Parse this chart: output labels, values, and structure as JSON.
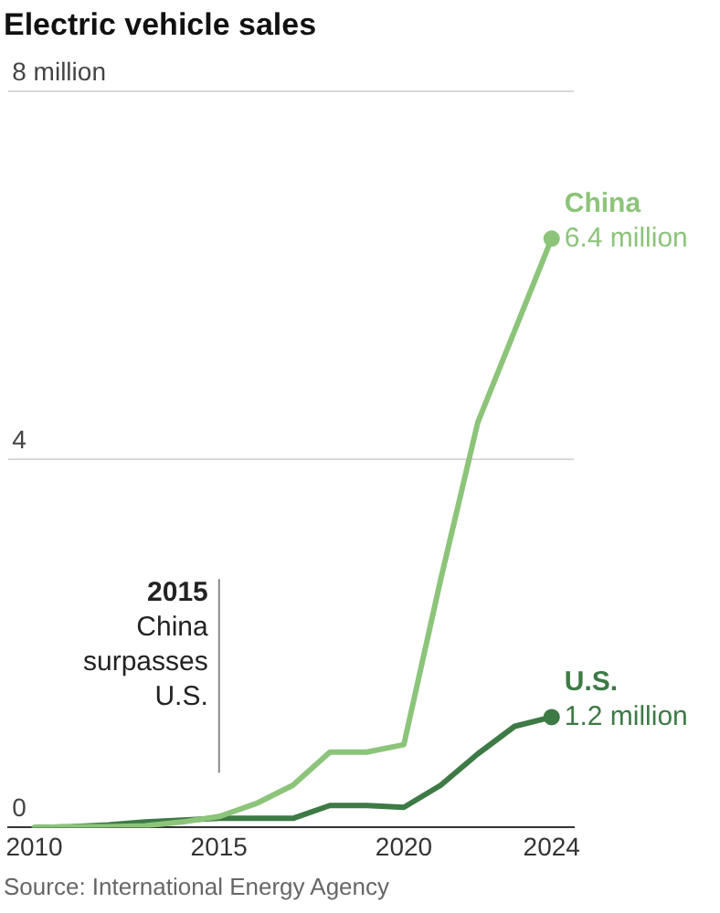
{
  "chart_data": {
    "type": "line",
    "title": "Electric vehicle sales",
    "x": [
      2010,
      2011,
      2012,
      2013,
      2014,
      2015,
      2016,
      2017,
      2018,
      2019,
      2020,
      2021,
      2022,
      2023,
      2024
    ],
    "series": [
      {
        "name": "China",
        "color": "#8cc47a",
        "values": [
          0,
          0.01,
          0.01,
          0.02,
          0.06,
          0.12,
          0.26,
          0.46,
          0.82,
          0.82,
          0.9,
          2.7,
          4.4,
          5.4,
          6.4
        ],
        "value_labels": [
          null,
          null,
          null,
          null,
          null,
          null,
          null,
          null,
          null,
          null,
          null,
          null,
          null,
          null,
          "6.4 million"
        ]
      },
      {
        "name": "U.S.",
        "color": "#3d7a45",
        "values": [
          0,
          0.01,
          0.03,
          0.06,
          0.08,
          0.1,
          0.1,
          0.1,
          0.24,
          0.24,
          0.22,
          0.46,
          0.8,
          1.1,
          1.2
        ],
        "value_labels": [
          null,
          null,
          null,
          null,
          null,
          null,
          null,
          null,
          null,
          null,
          null,
          null,
          null,
          null,
          "1.2 million"
        ]
      }
    ],
    "xlim": [
      2009.3,
      2024.6
    ],
    "xticks": [
      2010,
      2015,
      2020,
      2024
    ],
    "ylim": [
      0,
      8
    ],
    "yticks": [
      0,
      4,
      {
        "value": 8,
        "label": "8 million"
      }
    ],
    "grid": "y",
    "legend": false,
    "line_style": "solid",
    "ref_lines": [
      {
        "axis": "x",
        "value": 2015,
        "label": "2015\nChina\nsurpasses\nU.S.",
        "color": "#888888"
      }
    ],
    "annotations": [
      "Source: International Energy Agency"
    ]
  }
}
